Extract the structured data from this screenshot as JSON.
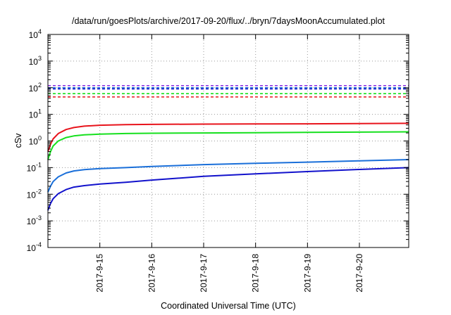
{
  "chart_data": {
    "type": "line",
    "title": "/data/run/goesPlots/archive/2017-09-20/flux/../bryn/7daysMoonAccumulated.plot",
    "xlabel": "Coordinated Universal Time (UTC)",
    "ylabel": "cSv",
    "y_scale": "log",
    "ylim": [
      0.0001,
      10000
    ],
    "xlim": [
      0,
      6.95
    ],
    "grid": true,
    "legend": "none",
    "x_ticks": [
      {
        "pos": 1,
        "label": "2017-9-15"
      },
      {
        "pos": 2,
        "label": "2017-9-16"
      },
      {
        "pos": 3,
        "label": "2017-9-17"
      },
      {
        "pos": 4,
        "label": "2017-9-18"
      },
      {
        "pos": 5,
        "label": "2017-9-19"
      },
      {
        "pos": 6,
        "label": "2017-9-20"
      }
    ],
    "y_ticks": [
      {
        "value": 0.0001,
        "base": "10",
        "exp": "-4"
      },
      {
        "value": 0.001,
        "base": "10",
        "exp": "-3"
      },
      {
        "value": 0.01,
        "base": "10",
        "exp": "-2"
      },
      {
        "value": 0.1,
        "base": "10",
        "exp": "-1"
      },
      {
        "value": 1,
        "base": "10",
        "exp": "0"
      },
      {
        "value": 10,
        "base": "10",
        "exp": "1"
      },
      {
        "value": 100,
        "base": "10",
        "exp": "2"
      },
      {
        "value": 1000,
        "base": "10",
        "exp": "3"
      },
      {
        "value": 10000,
        "base": "10",
        "exp": "4"
      }
    ],
    "series": [
      {
        "color": "#e8141c",
        "x": [
          0,
          0.05,
          0.1,
          0.2,
          0.35,
          0.5,
          0.7,
          1.0,
          1.5,
          2,
          3,
          4,
          5,
          6,
          6.95
        ],
        "y": [
          0.4,
          0.75,
          1.2,
          1.9,
          2.7,
          3.2,
          3.6,
          3.9,
          4.1,
          4.2,
          4.3,
          4.35,
          4.4,
          4.5,
          4.6
        ]
      },
      {
        "color": "#16e01e",
        "x": [
          0,
          0.05,
          0.1,
          0.2,
          0.35,
          0.5,
          0.7,
          1.0,
          1.5,
          2,
          3,
          4,
          5,
          6,
          6.95
        ],
        "y": [
          0.2,
          0.4,
          0.65,
          1.0,
          1.35,
          1.55,
          1.7,
          1.8,
          1.9,
          1.95,
          2.0,
          2.05,
          2.1,
          2.15,
          2.2
        ]
      },
      {
        "color": "#1a6fd9",
        "x": [
          0,
          0.05,
          0.1,
          0.2,
          0.35,
          0.5,
          0.7,
          1.0,
          1.5,
          2,
          3,
          4,
          5,
          6,
          6.95
        ],
        "y": [
          0.012,
          0.02,
          0.03,
          0.045,
          0.063,
          0.075,
          0.084,
          0.092,
          0.1,
          0.11,
          0.13,
          0.145,
          0.16,
          0.18,
          0.2
        ]
      },
      {
        "color": "#1212cc",
        "x": [
          0,
          0.05,
          0.1,
          0.2,
          0.35,
          0.5,
          0.7,
          1.0,
          1.5,
          2,
          3,
          4,
          5,
          6,
          6.95
        ],
        "y": [
          0.0025,
          0.0045,
          0.0068,
          0.0105,
          0.015,
          0.0185,
          0.021,
          0.024,
          0.028,
          0.034,
          0.047,
          0.058,
          0.071,
          0.085,
          0.1
        ]
      }
    ],
    "thresholds": [
      {
        "color": "#8a2be2",
        "value": 120
      },
      {
        "color": "#1a6fd9",
        "value": 100
      },
      {
        "color": "#1212cc",
        "value": 90
      },
      {
        "color": "#16e01e",
        "value": 60
      },
      {
        "color": "#e8141c",
        "value": 45
      }
    ]
  }
}
